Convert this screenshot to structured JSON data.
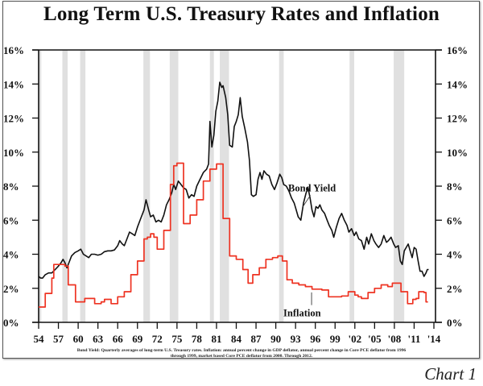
{
  "colors": {
    "bond_yield": "#111111",
    "inflation": "#ee3322",
    "recession": "#e0e0e0",
    "axis": "#111111"
  },
  "footnote_lines": [
    "Bond Yield: Quarterly averages of long-term U.S. Treasury rates. Inflation: annual percent change in GDP deflator, annual percent change in Core PCE deflator from 1996",
    "through 1999, market based Core PCE deflator from 2000.  Through 2012."
  ],
  "chart_label": "Chart 1",
  "chart_data": {
    "type": "line",
    "title": "Long Term U.S. Treasury Rates and Inflation",
    "xlabel": "",
    "ylabel": "",
    "xlim": [
      1954,
      2014
    ],
    "ylim": [
      0,
      16
    ],
    "grid": false,
    "x_tick_values": [
      1954,
      1957,
      1960,
      1963,
      1966,
      1969,
      1972,
      1975,
      1978,
      1981,
      1984,
      1987,
      1990,
      1993,
      1996,
      1999,
      2002,
      2005,
      2008,
      2011,
      2014
    ],
    "x_tick_labels": [
      "54",
      "57",
      "60",
      "63",
      "66",
      "69",
      "72",
      "75",
      "78",
      "81",
      "84",
      "87",
      "90",
      "93",
      "96",
      "99",
      "'02",
      "'05",
      "'08",
      "'11",
      "'14"
    ],
    "y_tick_values": [
      0,
      2,
      4,
      6,
      8,
      10,
      12,
      14,
      16
    ],
    "y_tick_labels_left": [
      "0%",
      "2%",
      "4%",
      "6%",
      "8%",
      "10%",
      "12%",
      "14%",
      "16%"
    ],
    "y_tick_labels_right": [
      "0%",
      "2%",
      "4%",
      "6%",
      "8%",
      "10%",
      "12%",
      "14%",
      "16%"
    ],
    "recessions": [
      [
        1954.0,
        1954.4
      ],
      [
        1957.6,
        1958.4
      ],
      [
        1960.3,
        1961.1
      ],
      [
        1969.9,
        1970.9
      ],
      [
        1973.9,
        1975.2
      ],
      [
        1980.0,
        1980.6
      ],
      [
        1981.5,
        1982.9
      ],
      [
        1990.5,
        1991.2
      ],
      [
        2001.2,
        2001.9
      ],
      [
        2007.9,
        2009.5
      ]
    ],
    "series": [
      {
        "name": "Bond Yield",
        "step": false,
        "annotation": {
          "label": "Bond Yield",
          "at": [
            1995.5,
            7.7
          ],
          "arrow_to": [
            1994.8,
            7.6
          ]
        },
        "points": [
          [
            1954.0,
            2.7
          ],
          [
            1954.3,
            2.6
          ],
          [
            1954.6,
            2.6
          ],
          [
            1955.0,
            2.8
          ],
          [
            1955.5,
            2.9
          ],
          [
            1956.0,
            2.9
          ],
          [
            1956.5,
            3.1
          ],
          [
            1957.0,
            3.3
          ],
          [
            1957.4,
            3.5
          ],
          [
            1957.7,
            3.7
          ],
          [
            1958.0,
            3.5
          ],
          [
            1958.3,
            3.2
          ],
          [
            1958.6,
            3.5
          ],
          [
            1959.0,
            3.9
          ],
          [
            1959.5,
            4.1
          ],
          [
            1960.0,
            4.2
          ],
          [
            1960.4,
            4.3
          ],
          [
            1960.8,
            4.0
          ],
          [
            1961.2,
            3.9
          ],
          [
            1961.6,
            3.8
          ],
          [
            1962.0,
            4.0
          ],
          [
            1962.5,
            4.0
          ],
          [
            1963.0,
            3.95
          ],
          [
            1963.5,
            4.0
          ],
          [
            1964.0,
            4.15
          ],
          [
            1964.5,
            4.2
          ],
          [
            1965.0,
            4.2
          ],
          [
            1965.5,
            4.25
          ],
          [
            1966.0,
            4.5
          ],
          [
            1966.3,
            4.8
          ],
          [
            1966.7,
            4.6
          ],
          [
            1967.0,
            4.5
          ],
          [
            1967.4,
            4.9
          ],
          [
            1967.8,
            5.3
          ],
          [
            1968.2,
            5.2
          ],
          [
            1968.6,
            5.1
          ],
          [
            1969.0,
            5.6
          ],
          [
            1969.5,
            6.1
          ],
          [
            1970.0,
            6.6
          ],
          [
            1970.3,
            7.2
          ],
          [
            1970.7,
            6.6
          ],
          [
            1971.0,
            6.2
          ],
          [
            1971.4,
            6.3
          ],
          [
            1971.8,
            5.9
          ],
          [
            1972.2,
            6.0
          ],
          [
            1972.6,
            5.9
          ],
          [
            1973.0,
            6.3
          ],
          [
            1973.4,
            6.9
          ],
          [
            1973.8,
            7.2
          ],
          [
            1974.2,
            7.6
          ],
          [
            1974.5,
            8.1
          ],
          [
            1974.8,
            7.8
          ],
          [
            1975.2,
            8.3
          ],
          [
            1975.6,
            8.1
          ],
          [
            1976.0,
            7.9
          ],
          [
            1976.4,
            7.8
          ],
          [
            1976.8,
            7.3
          ],
          [
            1977.2,
            7.5
          ],
          [
            1977.6,
            7.4
          ],
          [
            1978.0,
            8.0
          ],
          [
            1978.5,
            8.4
          ],
          [
            1979.0,
            8.8
          ],
          [
            1979.5,
            9.0
          ],
          [
            1979.8,
            9.3
          ],
          [
            1980.0,
            11.8
          ],
          [
            1980.3,
            10.3
          ],
          [
            1980.6,
            11.0
          ],
          [
            1980.9,
            12.4
          ],
          [
            1981.2,
            13.0
          ],
          [
            1981.5,
            14.1
          ],
          [
            1981.8,
            13.8
          ],
          [
            1982.0,
            13.9
          ],
          [
            1982.4,
            13.2
          ],
          [
            1982.7,
            12.2
          ],
          [
            1983.0,
            10.4
          ],
          [
            1983.4,
            10.3
          ],
          [
            1983.7,
            11.5
          ],
          [
            1984.0,
            11.8
          ],
          [
            1984.3,
            12.2
          ],
          [
            1984.6,
            13.2
          ],
          [
            1984.9,
            12.1
          ],
          [
            1985.3,
            11.4
          ],
          [
            1985.7,
            10.6
          ],
          [
            1986.0,
            9.5
          ],
          [
            1986.3,
            7.5
          ],
          [
            1986.6,
            7.4
          ],
          [
            1987.0,
            7.5
          ],
          [
            1987.3,
            8.4
          ],
          [
            1987.6,
            8.8
          ],
          [
            1987.9,
            8.4
          ],
          [
            1988.2,
            8.9
          ],
          [
            1988.6,
            8.7
          ],
          [
            1989.0,
            8.6
          ],
          [
            1989.4,
            8.1
          ],
          [
            1989.8,
            7.8
          ],
          [
            1990.2,
            8.2
          ],
          [
            1990.6,
            8.7
          ],
          [
            1990.9,
            8.5
          ],
          [
            1991.2,
            8.1
          ],
          [
            1991.6,
            8.0
          ],
          [
            1992.0,
            7.7
          ],
          [
            1992.4,
            7.3
          ],
          [
            1992.8,
            7.0
          ],
          [
            1993.1,
            6.6
          ],
          [
            1993.4,
            6.2
          ],
          [
            1993.8,
            6.0
          ],
          [
            1994.2,
            7.0
          ],
          [
            1994.6,
            7.6
          ],
          [
            1994.9,
            7.9
          ],
          [
            1995.2,
            7.3
          ],
          [
            1995.5,
            6.6
          ],
          [
            1995.8,
            6.2
          ],
          [
            1996.1,
            6.8
          ],
          [
            1996.4,
            6.7
          ],
          [
            1996.7,
            6.9
          ],
          [
            1997.0,
            6.6
          ],
          [
            1997.4,
            6.4
          ],
          [
            1997.8,
            6.0
          ],
          [
            1998.1,
            5.7
          ],
          [
            1998.5,
            5.4
          ],
          [
            1998.8,
            5.0
          ],
          [
            1999.2,
            5.6
          ],
          [
            1999.6,
            6.1
          ],
          [
            2000.0,
            6.4
          ],
          [
            2000.4,
            6.0
          ],
          [
            2000.8,
            5.7
          ],
          [
            2001.1,
            5.3
          ],
          [
            2001.5,
            5.5
          ],
          [
            2001.9,
            5.1
          ],
          [
            2002.2,
            5.3
          ],
          [
            2002.6,
            4.9
          ],
          [
            2003.0,
            4.8
          ],
          [
            2003.4,
            4.3
          ],
          [
            2003.8,
            5.0
          ],
          [
            2004.1,
            4.6
          ],
          [
            2004.5,
            5.2
          ],
          [
            2004.9,
            4.8
          ],
          [
            2005.2,
            4.6
          ],
          [
            2005.6,
            4.4
          ],
          [
            2006.0,
            4.6
          ],
          [
            2006.4,
            5.1
          ],
          [
            2006.8,
            4.7
          ],
          [
            2007.1,
            4.8
          ],
          [
            2007.5,
            5.0
          ],
          [
            2007.9,
            4.6
          ],
          [
            2008.2,
            4.4
          ],
          [
            2008.6,
            4.5
          ],
          [
            2008.9,
            3.6
          ],
          [
            2009.2,
            3.4
          ],
          [
            2009.5,
            4.2
          ],
          [
            2009.8,
            4.4
          ],
          [
            2010.1,
            4.6
          ],
          [
            2010.4,
            4.2
          ],
          [
            2010.7,
            3.8
          ],
          [
            2011.0,
            4.4
          ],
          [
            2011.3,
            4.3
          ],
          [
            2011.6,
            3.6
          ],
          [
            2011.9,
            3.0
          ],
          [
            2012.2,
            3.0
          ],
          [
            2012.5,
            2.7
          ],
          [
            2012.8,
            2.9
          ],
          [
            2013.0,
            3.1
          ],
          [
            2013.2,
            3.1
          ]
        ]
      },
      {
        "name": "Inflation",
        "step": true,
        "annotation": {
          "label": "Inflation",
          "at": [
            1994.0,
            0.35
          ],
          "arrow_to": [
            1995.8,
            1.9
          ]
        },
        "points": [
          [
            1954.0,
            0.9
          ],
          [
            1955.0,
            1.7
          ],
          [
            1956.0,
            2.6
          ],
          [
            1956.3,
            3.4
          ],
          [
            1957.0,
            3.4
          ],
          [
            1958.0,
            3.3
          ],
          [
            1958.5,
            2.2
          ],
          [
            1959.0,
            2.2
          ],
          [
            1959.6,
            1.2
          ],
          [
            1960.5,
            1.2
          ],
          [
            1961.0,
            1.4
          ],
          [
            1962.0,
            1.4
          ],
          [
            1962.5,
            1.1
          ],
          [
            1963.5,
            1.2
          ],
          [
            1964.0,
            1.35
          ],
          [
            1965.0,
            1.1
          ],
          [
            1966.0,
            1.5
          ],
          [
            1967.0,
            1.8
          ],
          [
            1968.0,
            2.8
          ],
          [
            1969.0,
            3.6
          ],
          [
            1970.0,
            4.9
          ],
          [
            1970.5,
            5.0
          ],
          [
            1971.0,
            5.2
          ],
          [
            1971.5,
            5.0
          ],
          [
            1972.0,
            4.3
          ],
          [
            1973.0,
            5.4
          ],
          [
            1974.0,
            8.1
          ],
          [
            1974.5,
            9.2
          ],
          [
            1975.0,
            9.35
          ],
          [
            1975.5,
            9.35
          ],
          [
            1976.0,
            5.8
          ],
          [
            1976.6,
            5.8
          ],
          [
            1977.0,
            6.3
          ],
          [
            1978.0,
            7.2
          ],
          [
            1979.0,
            8.3
          ],
          [
            1979.6,
            8.3
          ],
          [
            1980.0,
            9.0
          ],
          [
            1981.0,
            9.3
          ],
          [
            1981.4,
            9.3
          ],
          [
            1982.0,
            6.1
          ],
          [
            1982.7,
            6.1
          ],
          [
            1983.0,
            3.9
          ],
          [
            1984.0,
            3.7
          ],
          [
            1985.0,
            3.1
          ],
          [
            1985.8,
            2.3
          ],
          [
            1986.5,
            2.8
          ],
          [
            1987.5,
            3.2
          ],
          [
            1988.5,
            3.7
          ],
          [
            1989.5,
            3.8
          ],
          [
            1990.0,
            3.8
          ],
          [
            1990.3,
            3.9
          ],
          [
            1991.0,
            3.6
          ],
          [
            1991.7,
            2.5
          ],
          [
            1992.5,
            2.3
          ],
          [
            1993.5,
            2.2
          ],
          [
            1994.5,
            2.1
          ],
          [
            1995.5,
            1.95
          ],
          [
            1996.0,
            1.95
          ],
          [
            1997.0,
            1.9
          ],
          [
            1998.0,
            1.5
          ],
          [
            2000.0,
            1.55
          ],
          [
            2001.0,
            1.8
          ],
          [
            2001.6,
            1.8
          ],
          [
            2002.0,
            1.6
          ],
          [
            2002.5,
            1.5
          ],
          [
            2003.0,
            1.4
          ],
          [
            2004.0,
            1.75
          ],
          [
            2004.6,
            1.75
          ],
          [
            2005.0,
            2.0
          ],
          [
            2006.0,
            2.2
          ],
          [
            2007.0,
            2.1
          ],
          [
            2007.7,
            2.3
          ],
          [
            2008.5,
            2.3
          ],
          [
            2009.0,
            1.8
          ],
          [
            2009.5,
            1.8
          ],
          [
            2010.0,
            1.1
          ],
          [
            2010.8,
            1.35
          ],
          [
            2011.3,
            1.4
          ],
          [
            2011.7,
            1.8
          ],
          [
            2012.5,
            1.75
          ],
          [
            2012.8,
            1.2
          ],
          [
            2013.1,
            1.2
          ]
        ]
      }
    ]
  }
}
